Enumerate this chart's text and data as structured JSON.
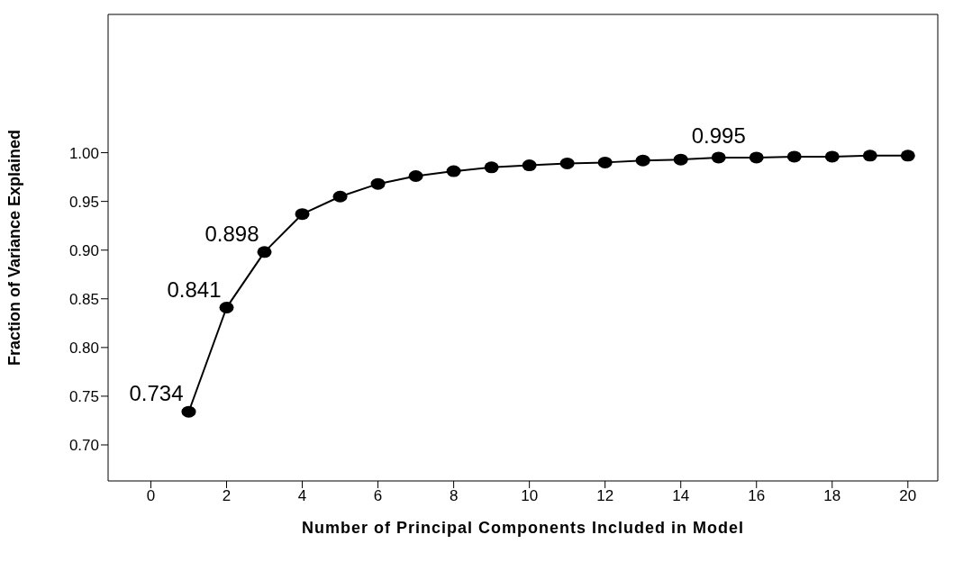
{
  "chart_data": {
    "type": "line",
    "xlabel": "Number of Principal Components Included in Model",
    "ylabel": "Fraction of Variance Explained",
    "x": [
      1,
      2,
      3,
      4,
      5,
      6,
      7,
      8,
      9,
      10,
      11,
      12,
      13,
      14,
      15,
      16,
      17,
      18,
      19,
      20
    ],
    "values": [
      0.734,
      0.841,
      0.898,
      0.937,
      0.955,
      0.968,
      0.976,
      0.981,
      0.985,
      0.987,
      0.989,
      0.99,
      0.992,
      0.993,
      0.995,
      0.995,
      0.996,
      0.996,
      0.997,
      0.997
    ],
    "value_labels": [
      "0.734",
      "0.841",
      "0.898",
      null,
      null,
      null,
      null,
      null,
      null,
      null,
      null,
      null,
      null,
      null,
      "0.995",
      null,
      null,
      null,
      null,
      null
    ],
    "color": "#000000",
    "marker": "circle",
    "line_style": "solid",
    "grid": false,
    "legend": false,
    "xlim": [
      -1.13,
      20.79
    ],
    "xticks": [
      0,
      2,
      4,
      6,
      8,
      10,
      12,
      14,
      16,
      18,
      20
    ],
    "ylim": [
      0.663,
      1.142
    ],
    "yticks": [
      {
        "value": 0.7,
        "label": "0.70"
      },
      0.75,
      {
        "value": 0.8,
        "label": "0.80"
      },
      0.85,
      {
        "value": 0.9,
        "label": "0.90"
      },
      0.95,
      {
        "value": 1.0,
        "label": "1.00"
      }
    ]
  }
}
